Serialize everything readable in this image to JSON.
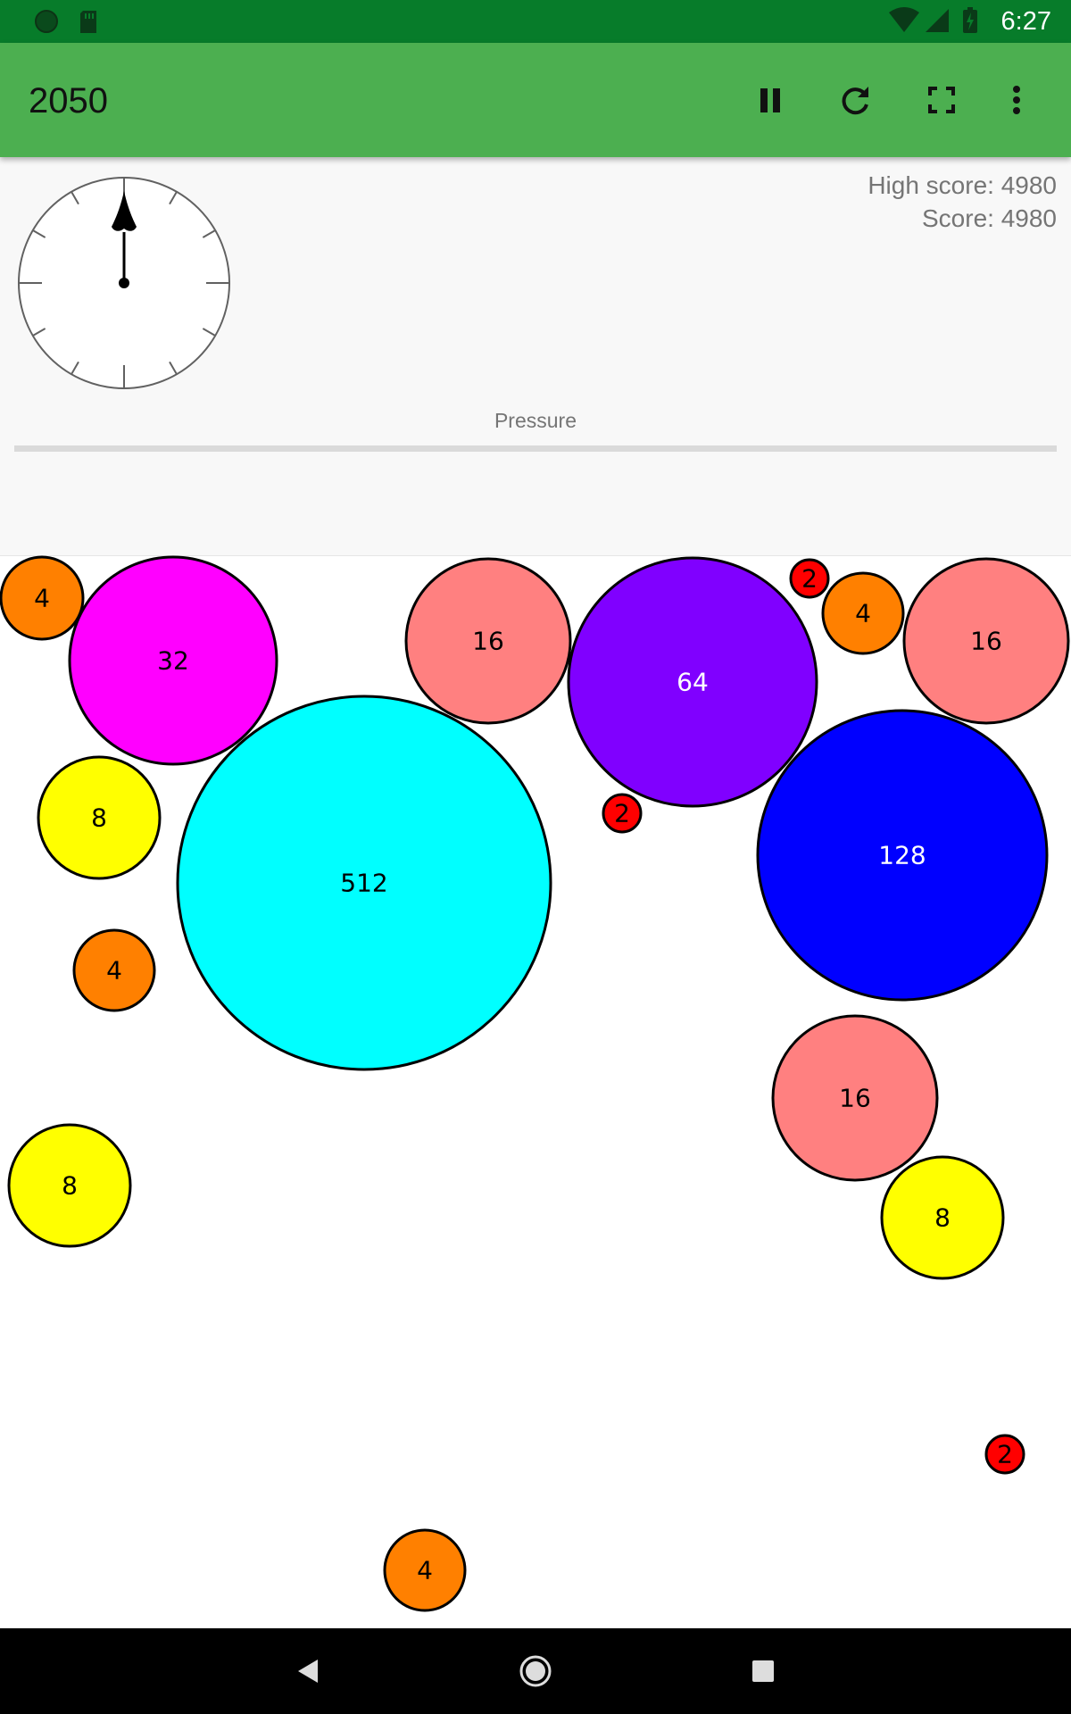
{
  "status_bar": {
    "time": "6:27",
    "left_icons": [
      "notification-dot-icon",
      "sd-card-icon"
    ],
    "right_icons": [
      "wifi-icon",
      "cell-signal-icon",
      "battery-charging-icon"
    ]
  },
  "toolbar": {
    "title": "2050",
    "actions": [
      "pause-icon",
      "restart-icon",
      "fullscreen-icon",
      "more-vert-icon"
    ]
  },
  "info": {
    "high_score": "High score: 4980",
    "score": "Score: 4980",
    "pressure_label": "Pressure",
    "pressure_level": 0
  },
  "gauge": {
    "needle_degrees": 0
  },
  "colors": {
    "status_bar": "#077c2a",
    "toolbar": "#4caf50",
    "ball_2": "#ff0000",
    "ball_4": "#ff8000",
    "ball_8": "#ffff00",
    "ball_16": "#ff8080",
    "ball_32": "#ff00ff",
    "ball_64": "#8000ff",
    "ball_128": "#0000ff",
    "ball_512": "#00ffff"
  },
  "balls": [
    {
      "value": "4"
    },
    {
      "value": "32"
    },
    {
      "value": "16"
    },
    {
      "value": "64"
    },
    {
      "value": "2"
    },
    {
      "value": "4"
    },
    {
      "value": "16"
    },
    {
      "value": "8"
    },
    {
      "value": "512"
    },
    {
      "value": "2"
    },
    {
      "value": "128"
    },
    {
      "value": "4"
    },
    {
      "value": "16"
    },
    {
      "value": "8"
    },
    {
      "value": "8"
    },
    {
      "value": "2"
    },
    {
      "value": "4"
    }
  ],
  "nav": [
    "back-icon",
    "home-icon",
    "recents-icon"
  ]
}
